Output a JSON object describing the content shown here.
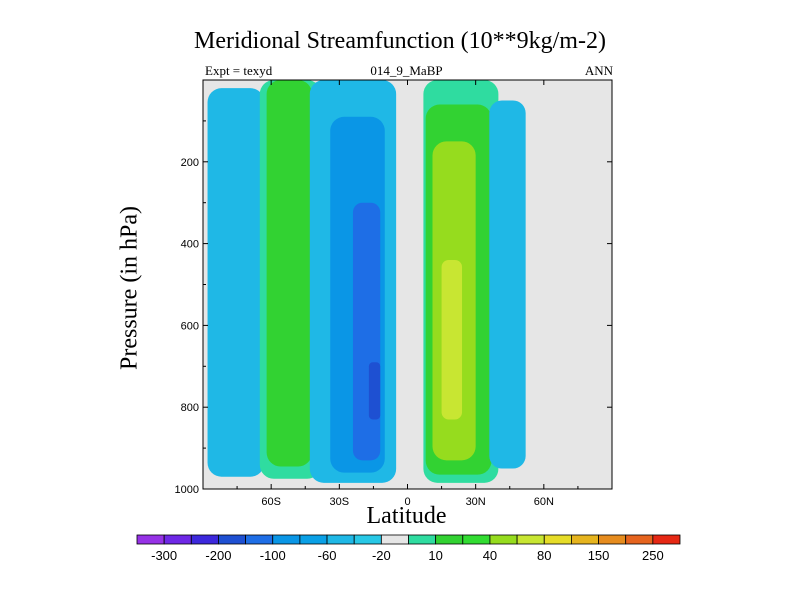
{
  "header": {
    "title": "Meridional Streamfunction (10**9kg/m-2)",
    "left_label": "Expt = texyd",
    "center_label": "014_9_MaBP",
    "right_label": "ANN"
  },
  "chart_data": {
    "type": "heatmap",
    "title": "Meridional Streamfunction (10**9kg/m-2)",
    "xlabel": "Latitude",
    "ylabel": "Pressure (in hPa)",
    "xlim": [
      -90,
      90
    ],
    "ylim": [
      1000,
      0
    ],
    "x_ticks": [
      {
        "value": -60,
        "label": "60S"
      },
      {
        "value": -30,
        "label": "30S"
      },
      {
        "value": 0,
        "label": "0"
      },
      {
        "value": 30,
        "label": "30N"
      },
      {
        "value": 60,
        "label": "60N"
      }
    ],
    "y_ticks": [
      {
        "value": 200,
        "label": "200"
      },
      {
        "value": 400,
        "label": "400"
      },
      {
        "value": 600,
        "label": "600"
      },
      {
        "value": 800,
        "label": "800"
      },
      {
        "value": 1000,
        "label": "1000"
      }
    ],
    "background_color": "#e6e6e6",
    "regions": [
      {
        "name": "southern-polar-cell",
        "color": "#1fb8e6",
        "lat_range": [
          -88,
          -63
        ],
        "p_range": [
          20,
          970
        ],
        "core_color": "#0aa0e6"
      },
      {
        "name": "southern-ferrel-cell-outer",
        "color": "#2fdca0",
        "lat_range": [
          -65,
          -38
        ],
        "p_range": [
          0,
          975
        ]
      },
      {
        "name": "southern-ferrel-cell",
        "color": "#32d232",
        "lat_range": [
          -62,
          -42
        ],
        "p_range": [
          0,
          945
        ]
      },
      {
        "name": "southern-hadley-cell-outer",
        "color": "#1fb8e6",
        "lat_range": [
          -43,
          -5
        ],
        "p_range": [
          0,
          985
        ]
      },
      {
        "name": "southern-hadley-cell",
        "color": "#0a96e6",
        "lat_range": [
          -34,
          -10
        ],
        "p_range": [
          90,
          960
        ]
      },
      {
        "name": "southern-hadley-cell-core",
        "color": "#1e6ee6",
        "lat_range": [
          -24,
          -12
        ],
        "p_range": [
          300,
          930
        ]
      },
      {
        "name": "southern-hadley-cell-max",
        "color": "#1e50d2",
        "lat_range": [
          -17,
          -12
        ],
        "p_range": [
          690,
          830
        ]
      },
      {
        "name": "northern-hadley-cell-outer",
        "color": "#2fdca0",
        "lat_range": [
          7,
          40
        ],
        "p_range": [
          0,
          985
        ]
      },
      {
        "name": "northern-hadley-cell",
        "color": "#32d232",
        "lat_range": [
          8,
          37
        ],
        "p_range": [
          60,
          965
        ]
      },
      {
        "name": "northern-hadley-cell-core",
        "color": "#96dc1e",
        "lat_range": [
          11,
          30
        ],
        "p_range": [
          150,
          930
        ]
      },
      {
        "name": "northern-hadley-cell-max",
        "color": "#c8e632",
        "lat_range": [
          15,
          24
        ],
        "p_range": [
          440,
          830
        ]
      },
      {
        "name": "northern-ferrel-cell",
        "color": "#1fb8e6",
        "lat_range": [
          36,
          52
        ],
        "p_range": [
          50,
          950
        ]
      }
    ],
    "colorbar": {
      "levels": [
        "-300",
        "-200",
        "-100",
        "-60",
        "-20",
        "10",
        "40",
        "80",
        "150",
        "250"
      ],
      "colors": [
        "#9632e6",
        "#6e28e6",
        "#3c28dc",
        "#1e50d2",
        "#1e6ee6",
        "#0a96e6",
        "#0aa0e6",
        "#1fb8e6",
        "#28c8e6",
        "#e6e6e6",
        "#2fdca0",
        "#32d232",
        "#32dc32",
        "#96dc1e",
        "#c8e632",
        "#e6dc28",
        "#e6b41e",
        "#e68c1e",
        "#e6641e",
        "#e62814"
      ]
    }
  }
}
